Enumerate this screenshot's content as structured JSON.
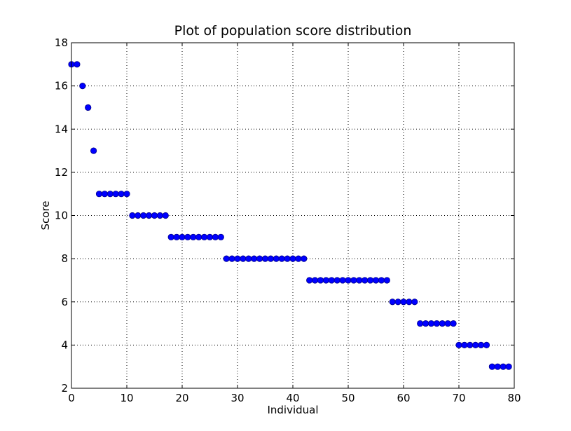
{
  "chart_data": {
    "type": "scatter",
    "title": "Plot of population score distribution",
    "xlabel": "Individual",
    "ylabel": "Score",
    "xlim": [
      0,
      80
    ],
    "ylim": [
      2,
      18
    ],
    "xticks": [
      "0",
      "10",
      "20",
      "30",
      "40",
      "50",
      "60",
      "70",
      "80"
    ],
    "yticks": [
      "2",
      "4",
      "6",
      "8",
      "10",
      "12",
      "14",
      "16",
      "18"
    ],
    "grid": true,
    "colors": {
      "marker": "#0000ff",
      "marker_edge": "#00008b",
      "grid": "#000000"
    },
    "x": [
      0,
      1,
      2,
      3,
      4,
      5,
      6,
      7,
      8,
      9,
      10,
      11,
      12,
      13,
      14,
      15,
      16,
      17,
      18,
      19,
      20,
      21,
      22,
      23,
      24,
      25,
      26,
      27,
      28,
      29,
      30,
      31,
      32,
      33,
      34,
      35,
      36,
      37,
      38,
      39,
      40,
      41,
      42,
      43,
      44,
      45,
      46,
      47,
      48,
      49,
      50,
      51,
      52,
      53,
      54,
      55,
      56,
      57,
      58,
      59,
      60,
      61,
      62,
      63,
      64,
      65,
      66,
      67,
      68,
      69,
      70,
      71,
      72,
      73,
      74,
      75,
      76,
      77,
      78,
      79
    ],
    "y": [
      17,
      17,
      16,
      15,
      13,
      11,
      11,
      11,
      11,
      11,
      11,
      10,
      10,
      10,
      10,
      10,
      10,
      10,
      9,
      9,
      9,
      9,
      9,
      9,
      9,
      9,
      9,
      9,
      8,
      8,
      8,
      8,
      8,
      8,
      8,
      8,
      8,
      8,
      8,
      8,
      8,
      8,
      8,
      7,
      7,
      7,
      7,
      7,
      7,
      7,
      7,
      7,
      7,
      7,
      7,
      7,
      7,
      7,
      6,
      6,
      6,
      6,
      6,
      5,
      5,
      5,
      5,
      5,
      5,
      5,
      4,
      4,
      4,
      4,
      4,
      4,
      3,
      3,
      3,
      3
    ]
  }
}
